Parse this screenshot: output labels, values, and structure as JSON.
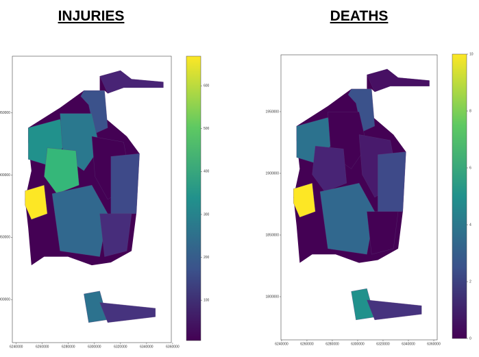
{
  "panels": [
    {
      "title": "INJURIES",
      "xlim": [
        6237000,
        6359000
      ],
      "xticks": [
        6240000,
        6260000,
        6280000,
        6300000,
        6320000,
        6340000,
        6360000
      ],
      "ylim": [
        1765400,
        1995600
      ],
      "yticks": [
        1800000,
        1850000,
        1900000,
        1950000
      ],
      "clim": [
        6,
        669
      ],
      "cticks": [
        100,
        200,
        300,
        400,
        500,
        600
      ]
    },
    {
      "title": "DEATHS",
      "xlim": [
        6239500,
        6362700
      ],
      "xticks": [
        6240000,
        6260000,
        6280000,
        6300000,
        6320000,
        6340000,
        6360000
      ],
      "ylim": [
        1765000,
        1996100
      ],
      "yticks": [
        1800000,
        1850000,
        1900000,
        1950000
      ],
      "clim": [
        0,
        10
      ],
      "cticks": [
        0,
        2,
        4,
        6,
        8,
        10
      ]
    }
  ]
}
